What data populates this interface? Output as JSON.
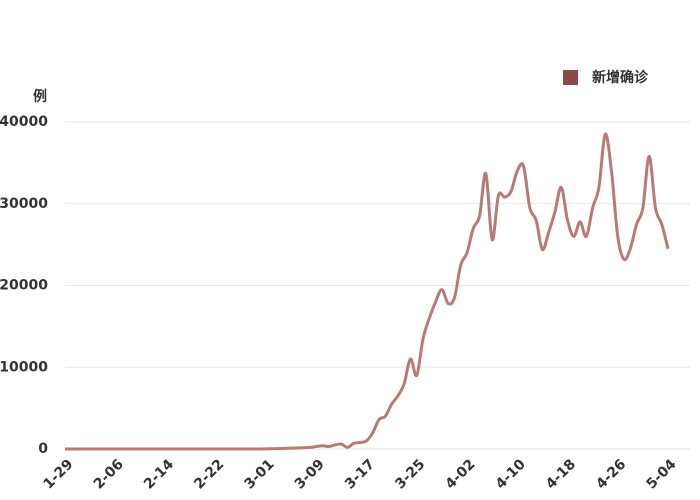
{
  "chart_data": {
    "type": "line",
    "y_axis_label": "例",
    "categories": [
      "1-29",
      null,
      null,
      null,
      null,
      null,
      null,
      null,
      "2-06",
      null,
      null,
      null,
      null,
      null,
      null,
      null,
      "2-14",
      null,
      null,
      null,
      null,
      null,
      null,
      null,
      "2-22",
      null,
      null,
      null,
      null,
      null,
      null,
      null,
      "3-01",
      null,
      null,
      null,
      null,
      null,
      null,
      null,
      "3-09",
      null,
      null,
      null,
      null,
      null,
      null,
      null,
      "3-17",
      null,
      null,
      null,
      null,
      null,
      null,
      null,
      "3-25",
      null,
      null,
      null,
      null,
      null,
      null,
      null,
      "4-02",
      null,
      null,
      null,
      null,
      null,
      null,
      null,
      "4-10",
      null,
      null,
      null,
      null,
      null,
      null,
      null,
      "4-18",
      null,
      null,
      null,
      null,
      null,
      null,
      null,
      "4-26",
      null,
      null,
      null,
      null,
      null,
      null,
      null,
      "5-04"
    ],
    "series": [
      {
        "name": "新增确诊",
        "color": "#b87a74",
        "legend_color": "#8b4a4a",
        "values": [
          0,
          0,
          0,
          0,
          0,
          0,
          0,
          0,
          0,
          0,
          0,
          0,
          0,
          0,
          0,
          0,
          0,
          0,
          0,
          0,
          0,
          0,
          0,
          0,
          0,
          0,
          0,
          0,
          0,
          0,
          0,
          0,
          20,
          30,
          50,
          70,
          100,
          120,
          150,
          200,
          300,
          400,
          300,
          500,
          600,
          200,
          700,
          800,
          1000,
          2000,
          3600,
          4000,
          5500,
          6500,
          8000,
          11000,
          9000,
          13500,
          16000,
          18000,
          19500,
          17800,
          18500,
          22500,
          24000,
          27000,
          28500,
          33700,
          25600,
          31000,
          30800,
          31500,
          34000,
          34600,
          29500,
          28000,
          24400,
          26500,
          29000,
          32000,
          28000,
          26000,
          27800,
          26000,
          29500,
          32000,
          38500,
          34000,
          26000,
          23200,
          24500,
          27500,
          29500,
          35800,
          29500,
          27500,
          24500
        ]
      }
    ],
    "ylim": [
      0,
      40000
    ],
    "yticks": [
      0,
      10000,
      20000,
      30000,
      40000
    ],
    "grid": true,
    "legend": "top-right"
  }
}
